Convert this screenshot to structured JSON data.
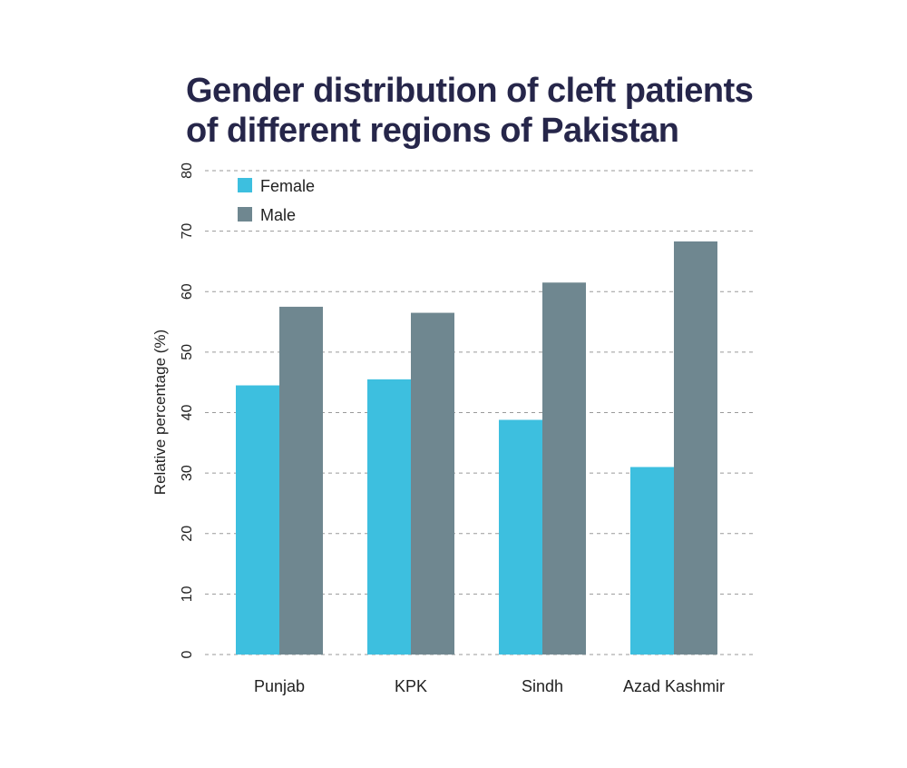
{
  "chart_data": {
    "type": "bar",
    "title_lines": [
      "Gender distribution of cleft patients",
      "of different regions of Pakistan"
    ],
    "xlabel": "",
    "ylabel": "Relative percentage (%)",
    "ylim": [
      0,
      80
    ],
    "yticks": [
      0,
      10,
      20,
      30,
      40,
      50,
      60,
      70,
      80
    ],
    "grid": "horizontal-dashed",
    "legend_position": "top-left",
    "categories": [
      "Punjab",
      "KPK",
      "Sindh",
      "Azad Kashmir"
    ],
    "series": [
      {
        "name": "Female",
        "color": "#3dbfdf",
        "values": [
          44.5,
          45.5,
          38.8,
          31.0
        ]
      },
      {
        "name": "Male",
        "color": "#6f8790",
        "values": [
          57.5,
          56.5,
          61.5,
          68.3
        ]
      }
    ]
  }
}
